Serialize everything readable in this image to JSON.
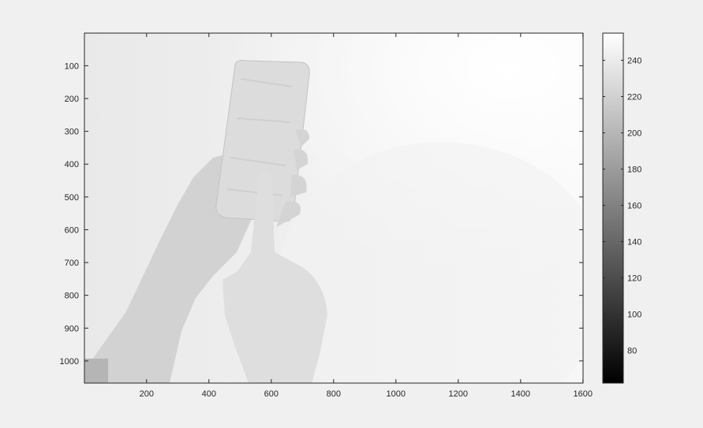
{
  "figure": {
    "background": "#f0f0f0",
    "image_content": "grayscale photo of hand holding a textured block"
  },
  "axes": {
    "x_ticks": [
      "200",
      "400",
      "600",
      "800",
      "1000",
      "1200",
      "1400",
      "1600"
    ],
    "y_ticks": [
      "100",
      "200",
      "300",
      "400",
      "500",
      "600",
      "700",
      "800",
      "900",
      "1000"
    ],
    "x_tick_values": [
      200,
      400,
      600,
      800,
      1000,
      1200,
      1400,
      1600
    ],
    "y_tick_values": [
      100,
      200,
      300,
      400,
      500,
      600,
      700,
      800,
      900,
      1000
    ],
    "x_range": [
      0.5,
      1600.5
    ],
    "y_range": [
      0.5,
      1067.5
    ]
  },
  "colorbar": {
    "ticks": [
      "80",
      "100",
      "120",
      "140",
      "160",
      "180",
      "200",
      "220",
      "240"
    ],
    "tick_values": [
      80,
      100,
      120,
      140,
      160,
      180,
      200,
      220,
      240
    ],
    "range": [
      62,
      255
    ],
    "colormap": "gray"
  },
  "colors": {
    "axis": "#262626",
    "figure_bg": "#f0f0f0"
  }
}
